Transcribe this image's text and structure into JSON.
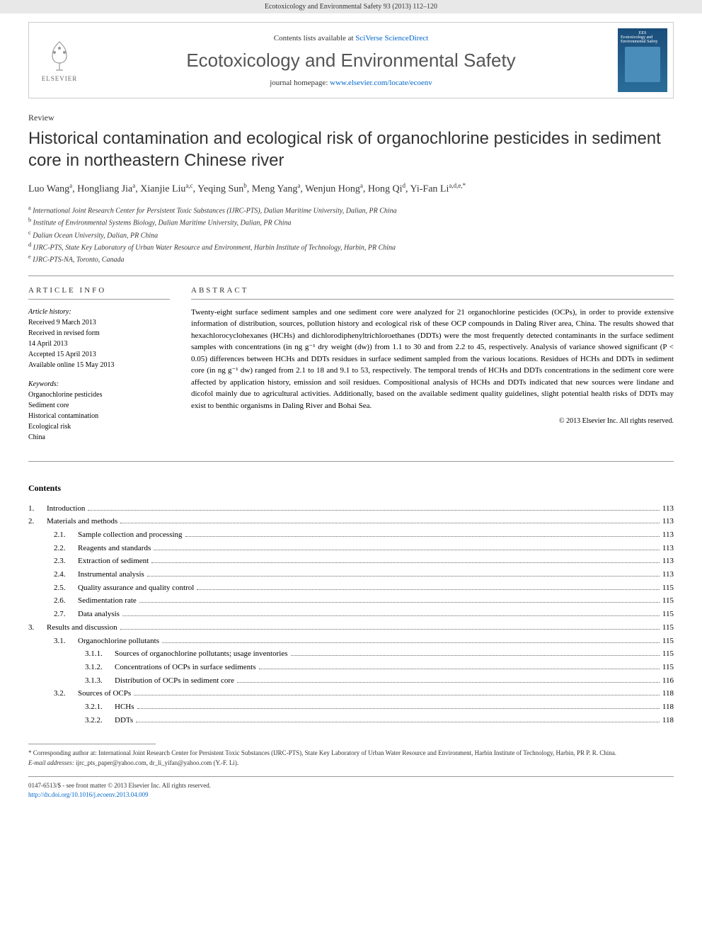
{
  "header": {
    "running_head": "Ecotoxicology and Environmental Safety 93 (2013) 112–120"
  },
  "contents_bar": {
    "available_prefix": "Contents lists available at ",
    "available_link": "SciVerse ScienceDirect",
    "journal_name": "Ecotoxicology and Environmental Safety",
    "homepage_prefix": "journal homepage: ",
    "homepage_link": "www.elsevier.com/locate/ecoenv",
    "publisher": "ELSEVIER",
    "cover_label_top": "EES",
    "cover_label_main": "Ecotoxicology and Environmental Safety"
  },
  "article": {
    "type_label": "Review",
    "title": "Historical contamination and ecological risk of organochlorine pesticides in sediment core in northeastern Chinese river",
    "authors_html": "Luo Wang<sup>a</sup>, Hongliang Jia<sup>a</sup>, Xianjie Liu<sup>a,c</sup>, Yeqing Sun<sup>b</sup>, Meng Yang<sup>a</sup>, Wenjun Hong<sup>a</sup>, Hong Qi<sup>d</sup>, Yi-Fan Li<sup>a,d,e,*</sup>",
    "affiliations": [
      {
        "sup": "a",
        "text": "International Joint Research Center for Persistent Toxic Substances (IJRC-PTS), Dalian Maritime University, Dalian, PR China"
      },
      {
        "sup": "b",
        "text": "Institute of Environmental Systems Biology, Dalian Maritime University, Dalian, PR China"
      },
      {
        "sup": "c",
        "text": "Dalian Ocean University, Dalian, PR China"
      },
      {
        "sup": "d",
        "text": "IJRC-PTS, State Key Laboratory of Urban Water Resource and Environment, Harbin Institute of Technology, Harbin, PR China"
      },
      {
        "sup": "e",
        "text": "IJRC-PTS-NA, Toronto, Canada"
      }
    ]
  },
  "article_info": {
    "heading": "ARTICLE INFO",
    "history_label": "Article history:",
    "history": [
      "Received 9 March 2013",
      "Received in revised form",
      "14 April 2013",
      "Accepted 15 April 2013",
      "Available online 15 May 2013"
    ],
    "keywords_label": "Keywords:",
    "keywords": [
      "Organochlorine pesticides",
      "Sediment core",
      "Historical contamination",
      "Ecological risk",
      "China"
    ]
  },
  "abstract": {
    "heading": "ABSTRACT",
    "text": "Twenty-eight surface sediment samples and one sediment core were analyzed for 21 organochlorine pesticides (OCPs), in order to provide extensive information of distribution, sources, pollution history and ecological risk of these OCP compounds in Daling River area, China. The results showed that hexachlorocyclohexanes (HCHs) and dichlorodiphenyltrichloroethanes (DDTs) were the most frequently detected contaminants in the surface sediment samples with concentrations (in ng g⁻¹ dry weight (dw)) from 1.1 to 30 and from 2.2 to 45, respectively. Analysis of variance showed significant (P < 0.05) differences between HCHs and DDTs residues in surface sediment sampled from the various locations. Residues of HCHs and DDTs in sediment core (in ng g⁻¹ dw) ranged from 2.1 to 18 and 9.1 to 53, respectively. The temporal trends of HCHs and DDTs concentrations in the sediment core were affected by application history, emission and soil residues. Compositional analysis of HCHs and DDTs indicated that new sources were lindane and dicofol mainly due to agricultural activities. Additionally, based on the available sediment quality guidelines, slight potential health risks of DDTs may exist to benthic organisms in Daling River and Bohai Sea.",
    "copyright": "© 2013 Elsevier Inc. All rights reserved."
  },
  "contents": {
    "heading": "Contents",
    "items": [
      {
        "level": 1,
        "num": "1.",
        "label": "Introduction",
        "page": "113"
      },
      {
        "level": 1,
        "num": "2.",
        "label": "Materials and methods",
        "page": "113"
      },
      {
        "level": 2,
        "num": "2.1.",
        "label": "Sample collection and processing",
        "page": "113"
      },
      {
        "level": 2,
        "num": "2.2.",
        "label": "Reagents and standards",
        "page": "113"
      },
      {
        "level": 2,
        "num": "2.3.",
        "label": "Extraction of sediment",
        "page": "113"
      },
      {
        "level": 2,
        "num": "2.4.",
        "label": "Instrumental analysis",
        "page": "113"
      },
      {
        "level": 2,
        "num": "2.5.",
        "label": "Quality assurance and quality control",
        "page": "115"
      },
      {
        "level": 2,
        "num": "2.6.",
        "label": "Sedimentation rate",
        "page": "115"
      },
      {
        "level": 2,
        "num": "2.7.",
        "label": "Data analysis",
        "page": "115"
      },
      {
        "level": 1,
        "num": "3.",
        "label": "Results and discussion",
        "page": "115"
      },
      {
        "level": 2,
        "num": "3.1.",
        "label": "Organochlorine pollutants",
        "page": "115"
      },
      {
        "level": 3,
        "num": "3.1.1.",
        "label": "Sources of organochlorine pollutants; usage inventories",
        "page": "115"
      },
      {
        "level": 3,
        "num": "3.1.2.",
        "label": "Concentrations of OCPs in surface sediments",
        "page": "115"
      },
      {
        "level": 3,
        "num": "3.1.3.",
        "label": "Distribution of OCPs in sediment core",
        "page": "116"
      },
      {
        "level": 2,
        "num": "3.2.",
        "label": "Sources of OCPs",
        "page": "118"
      },
      {
        "level": 3,
        "num": "3.2.1.",
        "label": "HCHs",
        "page": "118"
      },
      {
        "level": 3,
        "num": "3.2.2.",
        "label": "DDTs",
        "page": "118"
      }
    ]
  },
  "footnotes": {
    "corr": "* Corresponding author at: International Joint Research Center for Persistent Toxic Substances (IJRC-PTS), State Key Laboratory of Urban Water Resource and Environment, Harbin Institute of Technology, Harbin, PR P. R. China.",
    "email_label": "E-mail addresses:",
    "emails": "ijrc_pts_paper@yahoo.com, dr_li_yifan@yahoo.com (Y.-F. Li)."
  },
  "bottom": {
    "issn": "0147-6513/$ - see front matter © 2013 Elsevier Inc. All rights reserved.",
    "doi_label": "http://dx.doi.org/",
    "doi": "10.1016/j.ecoenv.2013.04.009"
  },
  "colors": {
    "link": "#0066cc",
    "header_bg": "#e8e8e8",
    "cover_bg_top": "#1a4d7a",
    "cover_bg_bottom": "#2a6d9a"
  }
}
